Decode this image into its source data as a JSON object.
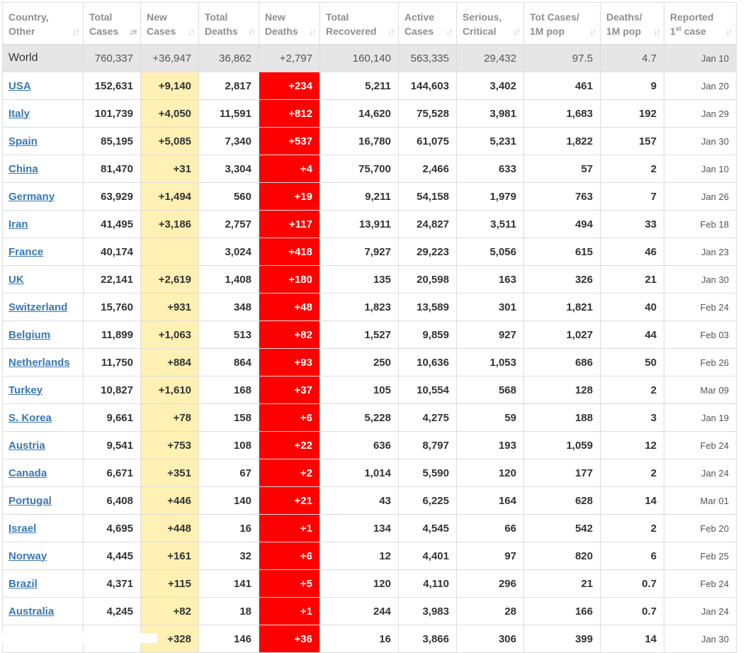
{
  "headers": [
    {
      "l1": "Country,",
      "l2": "Other",
      "sup": "",
      "l2b": ""
    },
    {
      "l1": "Total",
      "l2": "Cases",
      "sup": "",
      "l2b": ""
    },
    {
      "l1": "New",
      "l2": "Cases",
      "sup": "",
      "l2b": ""
    },
    {
      "l1": "Total",
      "l2": "Deaths",
      "sup": "",
      "l2b": ""
    },
    {
      "l1": "New",
      "l2": "Deaths",
      "sup": "",
      "l2b": ""
    },
    {
      "l1": "Total",
      "l2": "Recovered",
      "sup": "",
      "l2b": ""
    },
    {
      "l1": "Active",
      "l2": "Cases",
      "sup": "",
      "l2b": ""
    },
    {
      "l1": "Serious,",
      "l2": "Critical",
      "sup": "",
      "l2b": ""
    },
    {
      "l1": "Tot Cases/",
      "l2": "1M pop",
      "sup": "",
      "l2b": ""
    },
    {
      "l1": "Deaths/",
      "l2": "1M pop",
      "sup": "",
      "l2b": ""
    },
    {
      "l1": "Reported",
      "l2": "1",
      "sup": "st",
      "l2b": " case"
    }
  ],
  "sort_icon": "↓↑",
  "sort_icon_active": "↓≡",
  "world": [
    "World",
    "760,337",
    "+36,947",
    "36,862",
    "+2,797",
    "160,140",
    "563,335",
    "29,432",
    "97.5",
    "4.7",
    "Jan 10"
  ],
  "rows": [
    [
      "USA",
      "152,631",
      "+9,140",
      "2,817",
      "+234",
      "5,211",
      "144,603",
      "3,402",
      "461",
      "9",
      "Jan 20"
    ],
    [
      "Italy",
      "101,739",
      "+4,050",
      "11,591",
      "+812",
      "14,620",
      "75,528",
      "3,981",
      "1,683",
      "192",
      "Jan 29"
    ],
    [
      "Spain",
      "85,195",
      "+5,085",
      "7,340",
      "+537",
      "16,780",
      "61,075",
      "5,231",
      "1,822",
      "157",
      "Jan 30"
    ],
    [
      "China",
      "81,470",
      "+31",
      "3,304",
      "+4",
      "75,700",
      "2,466",
      "633",
      "57",
      "2",
      "Jan 10"
    ],
    [
      "Germany",
      "63,929",
      "+1,494",
      "560",
      "+19",
      "9,211",
      "54,158",
      "1,979",
      "763",
      "7",
      "Jan 26"
    ],
    [
      "Iran",
      "41,495",
      "+3,186",
      "2,757",
      "+117",
      "13,911",
      "24,827",
      "3,511",
      "494",
      "33",
      "Feb 18"
    ],
    [
      "France",
      "40,174",
      "",
      "3,024",
      "+418",
      "7,927",
      "29,223",
      "5,056",
      "615",
      "46",
      "Jan 23"
    ],
    [
      "UK",
      "22,141",
      "+2,619",
      "1,408",
      "+180",
      "135",
      "20,598",
      "163",
      "326",
      "21",
      "Jan 30"
    ],
    [
      "Switzerland",
      "15,760",
      "+931",
      "348",
      "+48",
      "1,823",
      "13,589",
      "301",
      "1,821",
      "40",
      "Feb 24"
    ],
    [
      "Belgium",
      "11,899",
      "+1,063",
      "513",
      "+82",
      "1,527",
      "9,859",
      "927",
      "1,027",
      "44",
      "Feb 03"
    ],
    [
      "Netherlands",
      "11,750",
      "+884",
      "864",
      "+93",
      "250",
      "10,636",
      "1,053",
      "686",
      "50",
      "Feb 26"
    ],
    [
      "Turkey",
      "10,827",
      "+1,610",
      "168",
      "+37",
      "105",
      "10,554",
      "568",
      "128",
      "2",
      "Mar 09"
    ],
    [
      "S. Korea",
      "9,661",
      "+78",
      "158",
      "+6",
      "5,228",
      "4,275",
      "59",
      "188",
      "3",
      "Jan 19"
    ],
    [
      "Austria",
      "9,541",
      "+753",
      "108",
      "+22",
      "636",
      "8,797",
      "193",
      "1,059",
      "12",
      "Feb 24"
    ],
    [
      "Canada",
      "6,671",
      "+351",
      "67",
      "+2",
      "1,014",
      "5,590",
      "120",
      "177",
      "2",
      "Jan 24"
    ],
    [
      "Portugal",
      "6,408",
      "+446",
      "140",
      "+21",
      "43",
      "6,225",
      "164",
      "628",
      "14",
      "Mar 01"
    ],
    [
      "Israel",
      "4,695",
      "+448",
      "16",
      "+1",
      "134",
      "4,545",
      "66",
      "542",
      "2",
      "Feb 20"
    ],
    [
      "Norway",
      "4,445",
      "+161",
      "32",
      "+6",
      "12",
      "4,401",
      "97",
      "820",
      "6",
      "Feb 25"
    ],
    [
      "Brazil",
      "4,371",
      "+115",
      "141",
      "+5",
      "120",
      "4,110",
      "296",
      "21",
      "0.7",
      "Feb 24"
    ],
    [
      "Australia",
      "4,245",
      "+82",
      "18",
      "+1",
      "244",
      "3,983",
      "28",
      "166",
      "0.7",
      "Jan 24"
    ],
    [
      "",
      "",
      "+328",
      "146",
      "+36",
      "16",
      "3,866",
      "306",
      "399",
      "14",
      "Jan 30"
    ]
  ]
}
